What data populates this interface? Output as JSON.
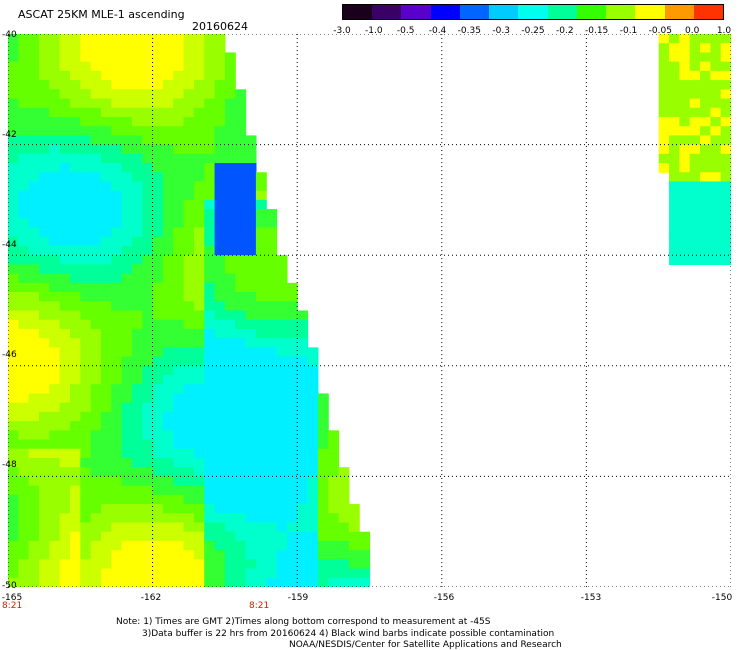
{
  "header": {
    "title": "ASCAT 25KM MLE-1 ascending",
    "date": "20160624"
  },
  "colorbar": {
    "colors": [
      "#1a001a",
      "#3a0066",
      "#5a00cc",
      "#0000ff",
      "#0066ff",
      "#00ccff",
      "#00ffee",
      "#00ff99",
      "#33ff00",
      "#99ff00",
      "#ffff00",
      "#ff9900",
      "#ff3300"
    ],
    "labels": [
      "-3.0",
      "-1.0",
      "-0.5",
      "-0.4",
      "-0.35",
      "-0.3",
      "-0.25",
      "-0.2",
      "-0.15",
      "-0.1",
      "-0.05",
      "0.0",
      "1.0"
    ]
  },
  "axes": {
    "lat_labels": [
      "-40",
      "-42",
      "-44",
      "-46",
      "-48",
      "-50"
    ],
    "lon_labels": [
      "-165",
      "-162",
      "-159",
      "-156",
      "-153",
      "-150"
    ],
    "time_labels": [
      "8:21",
      "8:21"
    ]
  },
  "notes": {
    "line1": "Note: 1) Times are GMT 2)Times along bottom correspond to measurement at -45S",
    "line2": "3)Data buffer is 22 hrs from 20160624 4) Black wind barbs indicate possible contamination",
    "line3": "NOAA/NESDIS/Center for Satellite Applications and Research"
  },
  "map_data": {
    "lat_range": [
      -50,
      -40
    ],
    "lon_range": [
      -165,
      -150
    ],
    "swath_west_edges_by_lat": [
      {
        "lat": -40,
        "lon_max": -160.5
      },
      {
        "lat": -41,
        "lon_max": -160.2
      },
      {
        "lat": -42,
        "lon_max": -159.9
      },
      {
        "lat": -43,
        "lon_max": -159.6
      },
      {
        "lat": -44,
        "lon_max": -159.3
      },
      {
        "lat": -45,
        "lon_max": -158.9
      },
      {
        "lat": -46,
        "lon_max": -158.6
      },
      {
        "lat": -47,
        "lon_max": -158.3
      },
      {
        "lat": -48,
        "lon_max": -158.0
      },
      {
        "lat": -49,
        "lon_max": -157.6
      },
      {
        "lat": -50,
        "lon_max": -157.4
      }
    ]
  }
}
